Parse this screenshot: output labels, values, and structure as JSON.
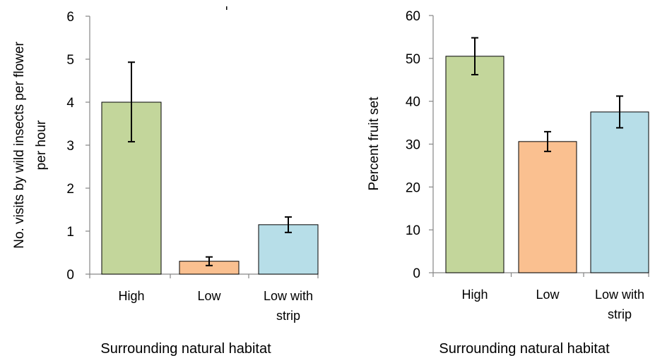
{
  "chart_data": [
    {
      "type": "bar",
      "title": "",
      "categories": [
        [
          "High"
        ],
        [
          "Low"
        ],
        [
          "Low with",
          "strip"
        ]
      ],
      "values": [
        4.0,
        0.3,
        1.15
      ],
      "error_low": [
        3.08,
        0.2,
        0.97
      ],
      "error_high": [
        4.93,
        0.4,
        1.33
      ],
      "colors": [
        "#c3d69b",
        "#fac090",
        "#b7dee8"
      ],
      "xlabel": "Surrounding natural habitat",
      "ylabel": [
        "No. visits by wild insects per flower",
        "per hour"
      ],
      "ylim": [
        0,
        6
      ],
      "yticks": [
        "0",
        "1",
        "2",
        "3",
        "4",
        "5",
        "6"
      ],
      "grid": false,
      "legend": "none"
    },
    {
      "type": "bar",
      "title": "",
      "categories": [
        [
          "High"
        ],
        [
          "Low"
        ],
        [
          "Low with",
          "strip"
        ]
      ],
      "values": [
        50.5,
        30.6,
        37.5
      ],
      "error_low": [
        46.2,
        28.3,
        33.8
      ],
      "error_high": [
        54.8,
        32.9,
        41.2
      ],
      "colors": [
        "#c3d69b",
        "#fac090",
        "#b7dee8"
      ],
      "xlabel": "Surrounding natural habitat",
      "ylabel": [
        "Percent fruit set"
      ],
      "ylim": [
        0,
        60
      ],
      "yticks": [
        "0",
        "10",
        "20",
        "30",
        "40",
        "50",
        "60"
      ],
      "grid": false,
      "legend": "none"
    }
  ]
}
